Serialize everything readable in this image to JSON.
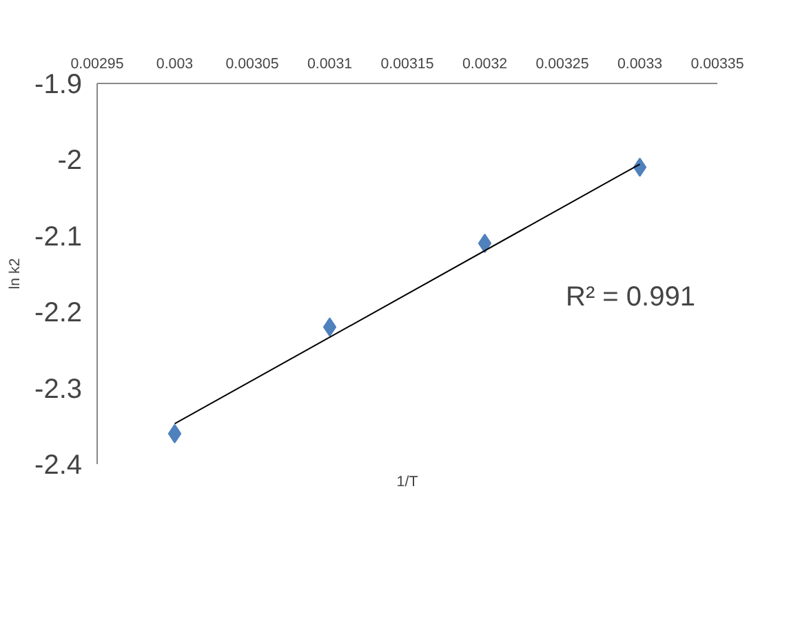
{
  "chart_data": {
    "type": "scatter",
    "xlabel": "1/T",
    "ylabel": "ln k2",
    "series": [
      {
        "color": "#4f81bd",
        "marker": "diamond",
        "x": [
          0.003,
          0.0031,
          0.0032,
          0.0033
        ],
        "values": [
          -2.36,
          -2.22,
          -2.11,
          -2.01
        ]
      },
      {
        "type": "line",
        "color": "#000000",
        "marker": "none",
        "x": [
          0.003,
          0.0033
        ],
        "values": [
          -2.347,
          -2.006
        ]
      }
    ],
    "xlim": [
      0.00295,
      0.00335
    ],
    "xticks": [
      0.00295,
      0.003,
      0.00305,
      0.0031,
      0.00315,
      0.0032,
      0.00325,
      0.0033,
      0.00335
    ],
    "ylim": [
      -2.4,
      -1.9
    ],
    "yticks": [
      -2.4,
      -2.3,
      -2.2,
      -2.1,
      -2,
      -1.9
    ],
    "annotations": [
      "R² = 0.991"
    ],
    "grid": false
  }
}
